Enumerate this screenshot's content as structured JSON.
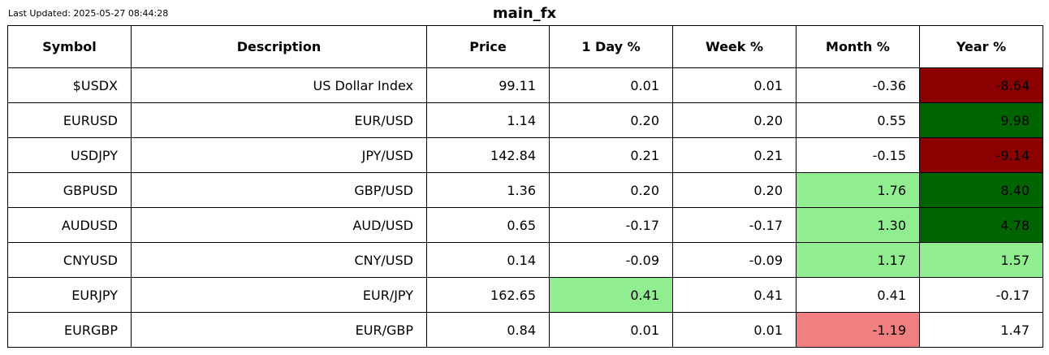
{
  "header": {
    "last_updated": "Last Updated: 2025-05-27 08:44:28",
    "title": "main_fx"
  },
  "colors": {
    "dark_red": "#8b0000",
    "dark_green": "#006400",
    "light_green": "#90ee90",
    "light_red": "#f08080",
    "none": "#ffffff"
  },
  "chart_data": {
    "type": "table",
    "title": "main_fx",
    "columns": [
      "Symbol",
      "Description",
      "Price",
      "1 Day %",
      "Week %",
      "Month %",
      "Year %"
    ],
    "rows": [
      {
        "values": [
          "$USDX",
          "US Dollar Index",
          "99.11",
          "0.01",
          "0.01",
          "-0.36",
          "-8.64"
        ],
        "highlight": [
          "",
          "",
          "",
          "",
          "",
          "",
          "dark_red"
        ]
      },
      {
        "values": [
          "EURUSD",
          "EUR/USD",
          "1.14",
          "0.20",
          "0.20",
          "0.55",
          "9.98"
        ],
        "highlight": [
          "",
          "",
          "",
          "",
          "",
          "",
          "dark_green"
        ]
      },
      {
        "values": [
          "USDJPY",
          "JPY/USD",
          "142.84",
          "0.21",
          "0.21",
          "-0.15",
          "-9.14"
        ],
        "highlight": [
          "",
          "",
          "",
          "",
          "",
          "",
          "dark_red"
        ]
      },
      {
        "values": [
          "GBPUSD",
          "GBP/USD",
          "1.36",
          "0.20",
          "0.20",
          "1.76",
          "8.40"
        ],
        "highlight": [
          "",
          "",
          "",
          "",
          "",
          "light_green",
          "dark_green"
        ]
      },
      {
        "values": [
          "AUDUSD",
          "AUD/USD",
          "0.65",
          "-0.17",
          "-0.17",
          "1.30",
          "4.78"
        ],
        "highlight": [
          "",
          "",
          "",
          "",
          "",
          "light_green",
          "dark_green"
        ]
      },
      {
        "values": [
          "CNYUSD",
          "CNY/USD",
          "0.14",
          "-0.09",
          "-0.09",
          "1.17",
          "1.57"
        ],
        "highlight": [
          "",
          "",
          "",
          "",
          "",
          "light_green",
          "light_green"
        ]
      },
      {
        "values": [
          "EURJPY",
          "EUR/JPY",
          "162.65",
          "0.41",
          "0.41",
          "0.41",
          "-0.17"
        ],
        "highlight": [
          "",
          "",
          "",
          "light_green",
          "",
          "",
          ""
        ]
      },
      {
        "values": [
          "EURGBP",
          "EUR/GBP",
          "0.84",
          "0.01",
          "0.01",
          "-1.19",
          "1.47"
        ],
        "highlight": [
          "",
          "",
          "",
          "",
          "",
          "light_red",
          ""
        ]
      }
    ]
  }
}
